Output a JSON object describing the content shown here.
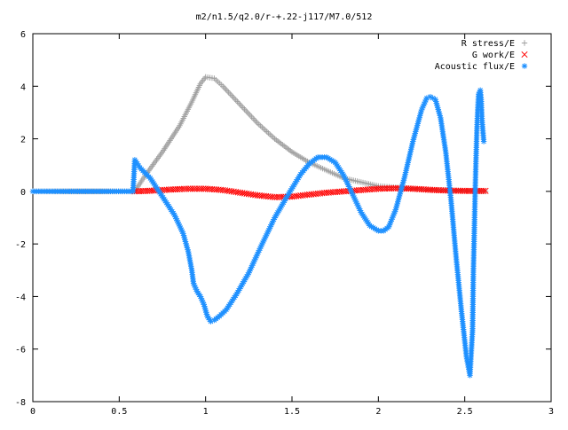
{
  "chart_data": {
    "type": "scatter",
    "title": "m2/n1.5/q2.0/r-+.22-j117/M7.0/512",
    "xlabel": "",
    "ylabel": "",
    "xlim": [
      0,
      3
    ],
    "ylim": [
      -8,
      6
    ],
    "x_ticks": [
      "0",
      "0.5",
      "1",
      "1.5",
      "2",
      "2.5",
      "3"
    ],
    "y_ticks": [
      "-8",
      "-6",
      "-4",
      "-2",
      "0",
      "2",
      "4",
      "6"
    ],
    "grid": false,
    "legend_position": "top-right",
    "series": [
      {
        "name": "R stress/E",
        "marker": "+",
        "color": "#a0a0a0",
        "points": [
          [
            0.0,
            0.0
          ],
          [
            0.3,
            0.0
          ],
          [
            0.59,
            0.0
          ],
          [
            0.65,
            0.6
          ],
          [
            0.75,
            1.5
          ],
          [
            0.85,
            2.5
          ],
          [
            0.92,
            3.4
          ],
          [
            0.97,
            4.1
          ],
          [
            1.0,
            4.35
          ],
          [
            1.05,
            4.3
          ],
          [
            1.1,
            4.0
          ],
          [
            1.2,
            3.3
          ],
          [
            1.3,
            2.6
          ],
          [
            1.4,
            2.0
          ],
          [
            1.5,
            1.5
          ],
          [
            1.6,
            1.1
          ],
          [
            1.7,
            0.8
          ],
          [
            1.8,
            0.5
          ],
          [
            1.9,
            0.35
          ],
          [
            2.0,
            0.2
          ],
          [
            2.1,
            0.15
          ],
          [
            2.2,
            0.1
          ],
          [
            2.3,
            0.05
          ],
          [
            2.4,
            0.05
          ],
          [
            2.5,
            0.02
          ],
          [
            2.62,
            0.0
          ]
        ]
      },
      {
        "name": "G work/E",
        "marker": "x",
        "color": "#ff0000",
        "points": [
          [
            0.59,
            0.0
          ],
          [
            0.7,
            0.03
          ],
          [
            0.8,
            0.07
          ],
          [
            0.9,
            0.1
          ],
          [
            1.0,
            0.1
          ],
          [
            1.1,
            0.05
          ],
          [
            1.2,
            -0.05
          ],
          [
            1.3,
            -0.15
          ],
          [
            1.4,
            -0.22
          ],
          [
            1.5,
            -0.2
          ],
          [
            1.6,
            -0.12
          ],
          [
            1.7,
            -0.05
          ],
          [
            1.8,
            0.0
          ],
          [
            1.9,
            0.05
          ],
          [
            2.0,
            0.1
          ],
          [
            2.1,
            0.12
          ],
          [
            2.2,
            0.1
          ],
          [
            2.3,
            0.06
          ],
          [
            2.4,
            0.03
          ],
          [
            2.5,
            0.02
          ],
          [
            2.62,
            0.02
          ]
        ]
      },
      {
        "name": "Acoustic flux/E",
        "marker": "*",
        "color": "#1e90ff",
        "points": [
          [
            0.0,
            0.0
          ],
          [
            0.2,
            0.0
          ],
          [
            0.4,
            0.0
          ],
          [
            0.58,
            0.0
          ],
          [
            0.59,
            1.2
          ],
          [
            0.62,
            0.9
          ],
          [
            0.68,
            0.5
          ],
          [
            0.72,
            0.1
          ],
          [
            0.76,
            -0.3
          ],
          [
            0.82,
            -0.9
          ],
          [
            0.87,
            -1.6
          ],
          [
            0.9,
            -2.3
          ],
          [
            0.92,
            -3.0
          ],
          [
            0.93,
            -3.5
          ],
          [
            0.95,
            -3.8
          ],
          [
            0.97,
            -4.0
          ],
          [
            0.99,
            -4.3
          ],
          [
            1.01,
            -4.75
          ],
          [
            1.03,
            -4.95
          ],
          [
            1.05,
            -4.9
          ],
          [
            1.08,
            -4.75
          ],
          [
            1.12,
            -4.5
          ],
          [
            1.18,
            -3.9
          ],
          [
            1.25,
            -3.1
          ],
          [
            1.32,
            -2.1
          ],
          [
            1.4,
            -1.0
          ],
          [
            1.48,
            -0.1
          ],
          [
            1.55,
            0.65
          ],
          [
            1.6,
            1.05
          ],
          [
            1.65,
            1.3
          ],
          [
            1.7,
            1.3
          ],
          [
            1.75,
            1.1
          ],
          [
            1.8,
            0.6
          ],
          [
            1.85,
            -0.1
          ],
          [
            1.9,
            -0.8
          ],
          [
            1.95,
            -1.3
          ],
          [
            2.0,
            -1.5
          ],
          [
            2.03,
            -1.5
          ],
          [
            2.06,
            -1.35
          ],
          [
            2.1,
            -0.7
          ],
          [
            2.15,
            0.5
          ],
          [
            2.2,
            1.9
          ],
          [
            2.25,
            3.1
          ],
          [
            2.28,
            3.55
          ],
          [
            2.3,
            3.6
          ],
          [
            2.33,
            3.5
          ],
          [
            2.36,
            2.8
          ],
          [
            2.39,
            1.5
          ],
          [
            2.42,
            -0.3
          ],
          [
            2.45,
            -2.5
          ],
          [
            2.48,
            -4.5
          ],
          [
            2.51,
            -6.3
          ],
          [
            2.53,
            -7.0
          ],
          [
            2.545,
            -5.3
          ],
          [
            2.55,
            -3.0
          ],
          [
            2.555,
            -1.6
          ],
          [
            2.56,
            -0.1
          ],
          [
            2.565,
            1.2
          ],
          [
            2.57,
            2.3
          ],
          [
            2.575,
            3.1
          ],
          [
            2.58,
            3.7
          ],
          [
            2.59,
            3.85
          ],
          [
            2.595,
            3.5
          ],
          [
            2.6,
            2.7
          ],
          [
            2.61,
            1.9
          ]
        ]
      }
    ]
  }
}
